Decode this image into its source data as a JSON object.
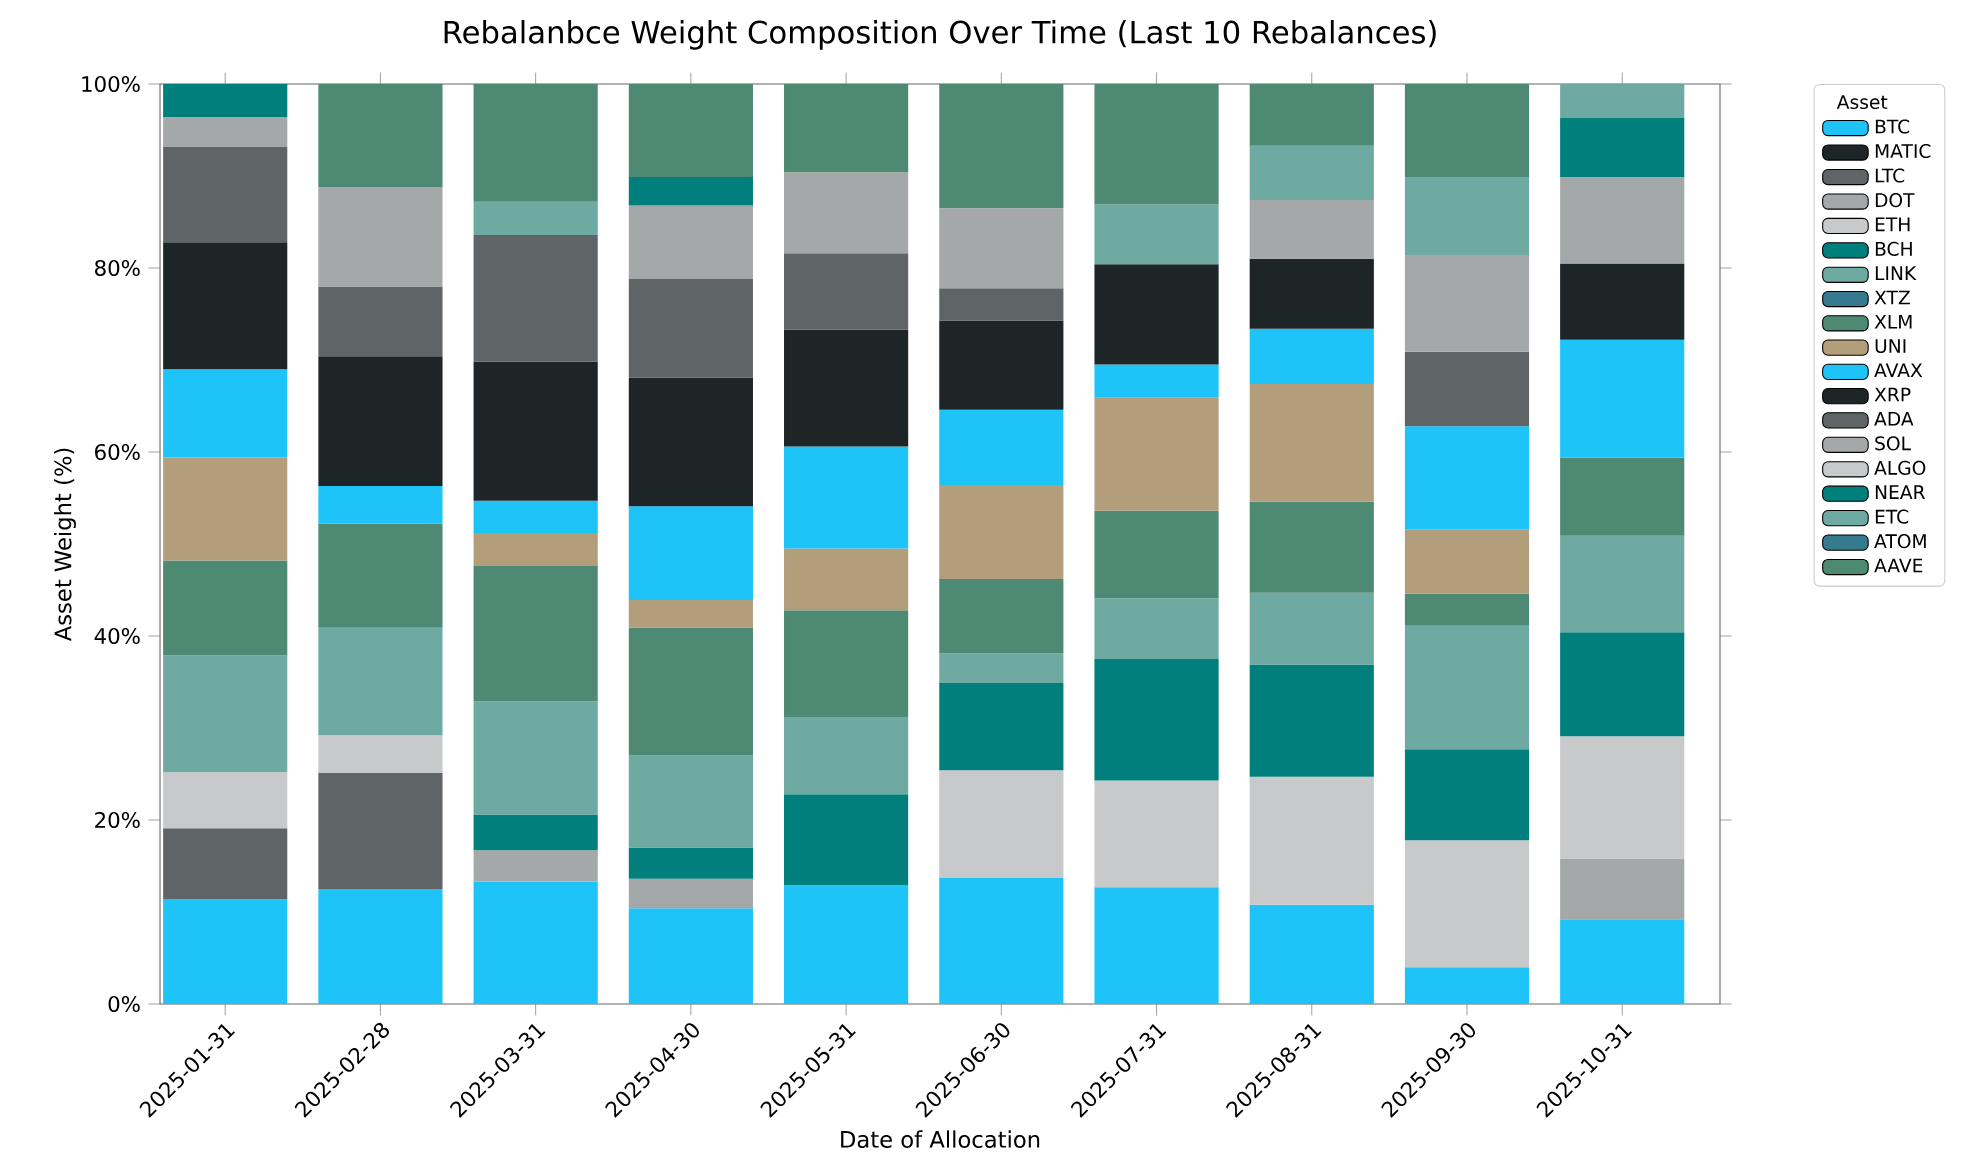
{
  "chart_data": {
    "type": "bar",
    "stacked": true,
    "title": "Rebalanbce Weight Composition Over Time (Last 10 Rebalances)",
    "xlabel": "Date of Allocation",
    "ylabel": "Asset Weight (%)",
    "legend_title": "Asset",
    "legend": "right",
    "categories": [
      "2025-01-31",
      "2025-02-28",
      "2025-03-31",
      "2025-04-30",
      "2025-05-31",
      "2025-06-30",
      "2025-07-31",
      "2025-08-31",
      "2025-09-30",
      "2025-10-31"
    ],
    "ylim": [
      0,
      100
    ],
    "yticks": [
      {
        "value": 0,
        "label": "0%"
      },
      {
        "value": 20,
        "label": "20%"
      },
      {
        "value": 40,
        "label": "40%"
      },
      {
        "value": 60,
        "label": "60%"
      },
      {
        "value": 80,
        "label": "80%"
      },
      {
        "value": 100,
        "label": "100%"
      }
    ],
    "series": [
      {
        "name": "BTC",
        "color": "#1ec3f8",
        "values": [
          11.4,
          12.5,
          13.3,
          10.4,
          12.9,
          13.7,
          12.7,
          10.8,
          4.0,
          9.2
        ]
      },
      {
        "name": "MATIC",
        "color": "#1e2527",
        "values": [
          null,
          null,
          null,
          null,
          null,
          null,
          null,
          null,
          null,
          null
        ]
      },
      {
        "name": "LTC",
        "color": "#5f6567",
        "values": [
          7.7,
          12.6,
          null,
          null,
          null,
          null,
          null,
          null,
          null,
          null
        ]
      },
      {
        "name": "DOT",
        "color": "#a4a8a9",
        "values": [
          null,
          null,
          3.4,
          3.2,
          null,
          null,
          null,
          null,
          null,
          6.6
        ]
      },
      {
        "name": "ETH",
        "color": "#c8c9cb",
        "values": [
          6.1,
          4.1,
          null,
          null,
          null,
          11.7,
          11.6,
          13.9,
          13.8,
          13.3
        ]
      },
      {
        "name": "BCH",
        "color": "#007f7d",
        "values": [
          null,
          null,
          3.9,
          3.4,
          9.9,
          9.5,
          13.2,
          12.2,
          9.9,
          11.3
        ]
      },
      {
        "name": "LINK",
        "color": "#6ea9a2",
        "values": [
          12.7,
          11.7,
          12.3,
          10.0,
          8.4,
          3.2,
          6.6,
          7.8,
          13.4,
          10.5
        ]
      },
      {
        "name": "XTZ",
        "color": "#357a8f",
        "values": [
          null,
          null,
          null,
          null,
          null,
          null,
          null,
          null,
          null,
          null
        ]
      },
      {
        "name": "XLM",
        "color": "#4e8a73",
        "values": [
          10.3,
          11.3,
          14.7,
          13.9,
          11.6,
          8.1,
          9.5,
          9.9,
          3.5,
          8.5
        ]
      },
      {
        "name": "UNI",
        "color": "#b39e7b",
        "values": [
          11.2,
          null,
          3.6,
          3.0,
          6.7,
          10.2,
          12.3,
          12.8,
          7.0,
          null
        ]
      },
      {
        "name": "AVAX",
        "color": "#1ec3f8",
        "values": [
          9.6,
          4.1,
          3.5,
          10.2,
          11.1,
          8.2,
          3.6,
          6.0,
          11.2,
          12.8
        ]
      },
      {
        "name": "XRP",
        "color": "#1e2527",
        "values": [
          13.8,
          14.1,
          15.1,
          14.0,
          12.7,
          9.7,
          10.9,
          7.6,
          null,
          8.3
        ]
      },
      {
        "name": "ADA",
        "color": "#5f6567",
        "values": [
          10.4,
          7.6,
          13.8,
          10.7,
          8.3,
          3.5,
          null,
          null,
          8.1,
          null
        ]
      },
      {
        "name": "SOL",
        "color": "#a4a8a9",
        "values": [
          3.2,
          10.8,
          null,
          8.0,
          8.8,
          8.7,
          null,
          6.4,
          10.5,
          9.4
        ]
      },
      {
        "name": "ALGO",
        "color": "#c8c9cb",
        "values": [
          null,
          null,
          null,
          null,
          null,
          null,
          null,
          null,
          null,
          null
        ]
      },
      {
        "name": "NEAR",
        "color": "#007f7d",
        "values": [
          3.6,
          null,
          null,
          3.1,
          null,
          null,
          null,
          null,
          null,
          6.4
        ]
      },
      {
        "name": "ETC",
        "color": "#6ea9a2",
        "values": [
          null,
          null,
          3.6,
          null,
          null,
          null,
          6.5,
          5.9,
          8.5,
          3.7
        ]
      },
      {
        "name": "ATOM",
        "color": "#357a8f",
        "values": [
          null,
          null,
          null,
          null,
          null,
          null,
          null,
          null,
          null,
          null
        ]
      },
      {
        "name": "AAVE",
        "color": "#4e8a73",
        "values": [
          null,
          11.2,
          12.8,
          10.1,
          9.6,
          13.5,
          13.1,
          6.7,
          10.1,
          null
        ]
      }
    ]
  }
}
